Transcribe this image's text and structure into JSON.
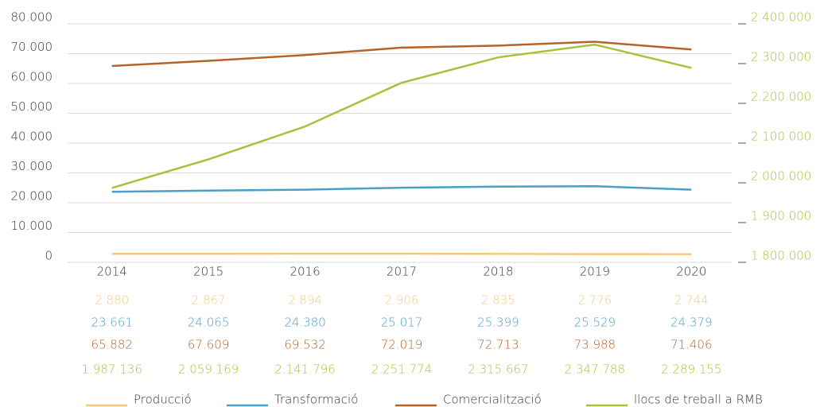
{
  "chart_data": {
    "type": "line",
    "categories": [
      "2014",
      "2015",
      "2016",
      "2017",
      "2018",
      "2019",
      "2020"
    ],
    "ylim": [
      0,
      80000
    ],
    "yticks": [
      0,
      {
        "value": 10000,
        "label": "10.000"
      },
      {
        "value": 20000,
        "label": "20.000"
      },
      {
        "value": 30000,
        "label": "30.000"
      },
      {
        "value": 40000,
        "label": "40.000"
      },
      {
        "value": 50000,
        "label": "50.000"
      },
      {
        "value": 60000,
        "label": "60.000"
      },
      {
        "value": 70000,
        "label": "70.000"
      },
      {
        "value": 80000,
        "label": "80.000"
      }
    ],
    "y2lim": [
      1800000,
      2400000
    ],
    "y2ticks": [
      {
        "value": 1800000,
        "label": "1.800.000"
      },
      {
        "value": 1900000,
        "label": "1.900.000"
      },
      {
        "value": 2000000,
        "label": "2.000.000"
      },
      {
        "value": 2100000,
        "label": "2.100.000"
      },
      {
        "value": 2200000,
        "label": "2.200.000"
      },
      {
        "value": 2300000,
        "label": "2.300.000"
      },
      {
        "value": 2400000,
        "label": "2.400.000"
      }
    ],
    "y2color": "#a6c23a",
    "grid": true,
    "series": [
      {
        "name": "Producció",
        "color": "#f6c77f",
        "values": [
          2880,
          2867,
          2894,
          2906,
          2835,
          2776,
          2744
        ],
        "value_labels": [
          "2.880",
          "2.867",
          "2.894",
          "2.906",
          "2.835",
          "2.776",
          "2.744"
        ]
      },
      {
        "name": "Transformació",
        "color": "#4a9fc6",
        "values": [
          23661,
          24065,
          24380,
          25017,
          25399,
          25529,
          24379
        ],
        "value_labels": [
          "23.661",
          "24.065",
          "24.380",
          "25.017",
          "25.399",
          "25.529",
          "24.379"
        ]
      },
      {
        "name": "Comercialització",
        "color": "#b6622a",
        "values": [
          65882,
          67609,
          69532,
          72019,
          72713,
          73988,
          71406
        ],
        "value_labels": [
          "65.882",
          "67.609",
          "69.532",
          "72.019",
          "72.713",
          "73.988",
          "71.406"
        ]
      },
      {
        "name": "llocs de treball a RMB",
        "color": "#a6c23a",
        "axis": "y2",
        "values": [
          1987136,
          2059169,
          2141796,
          2251774,
          2315667,
          2347788,
          2289155
        ],
        "value_labels": [
          "1.987.136",
          "2.059.169",
          "2.141.796",
          "2.251.774",
          "2.315.667",
          "2.347.788",
          "2.289.155"
        ]
      }
    ]
  }
}
